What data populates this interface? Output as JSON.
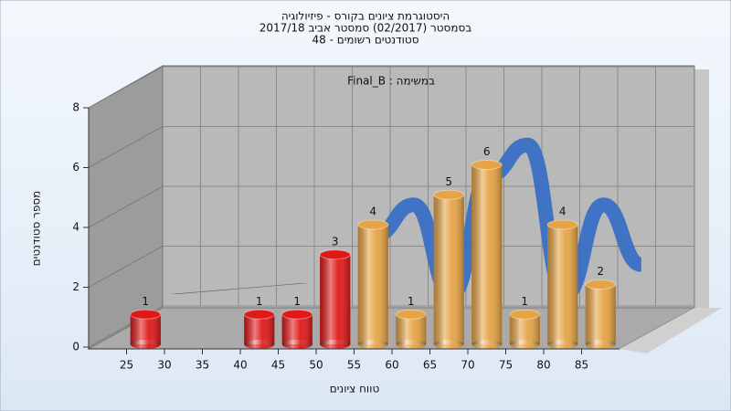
{
  "chart_data": {
    "type": "histogram",
    "title_lines": [
      "היסטוגרמת ציונים בקורס - פיזיולוגיה",
      "בסמסטר  (02/2017)  סמסטר אביב 2017/18",
      "סטודנטים רשומים - 48"
    ],
    "annotation": "במשימה : Final_B",
    "xlabel": "טווח ציונים",
    "ylabel": "מספר סטודנטים",
    "bins": [
      25,
      30,
      35,
      40,
      45,
      50,
      55,
      60,
      65,
      70,
      75,
      80,
      85,
      90
    ],
    "counts": [
      1,
      0,
      0,
      1,
      1,
      3,
      4,
      1,
      5,
      6,
      1,
      4,
      2
    ],
    "colors": [
      "#e01818",
      "#e01818",
      "#e01818",
      "#e01818",
      "#e01818",
      "#e01818",
      "#e6a445",
      "#e6a445",
      "#e6a445",
      "#e6a445",
      "#e6a445",
      "#e6a445",
      "#e6a445"
    ],
    "ribbon_color": "#3a6fc4",
    "xlim": [
      20,
      90
    ],
    "xticks": [
      25,
      30,
      35,
      40,
      45,
      50,
      55,
      60,
      65,
      70,
      75,
      80,
      85
    ],
    "ylim": [
      0,
      8
    ],
    "yticks": [
      0,
      2,
      4,
      6,
      8
    ],
    "grid": true
  }
}
